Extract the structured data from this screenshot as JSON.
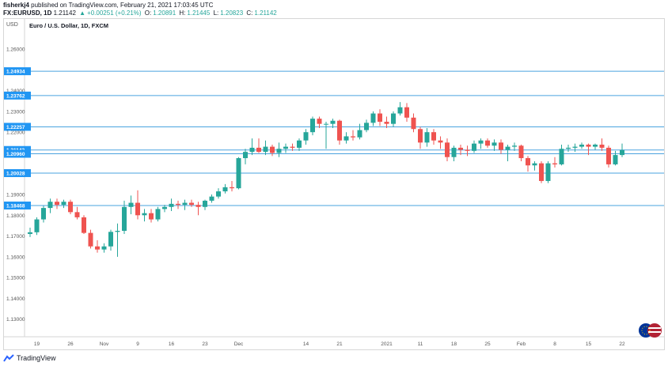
{
  "header": {
    "line1_user": "fisherkj4",
    "line1_rest": " published on TradingView.com, February 21, 2021 17:03:45 UTC",
    "symbol": "FX:EURUSD, 1D",
    "last": "1.21142",
    "change_arrow": "▲",
    "change": "+0.00251 (+0.21%)",
    "o_label": "O:",
    "o_value": "1.20891",
    "h_label": "H:",
    "h_value": "1.21445",
    "l_label": "L:",
    "l_value": "1.20823",
    "c_label": "C:",
    "c_value": "1.21142"
  },
  "footer": {
    "brand": "TradingView",
    "logo_icon": "tradingview-logo-icon"
  },
  "colors": {
    "up": "#26a69a",
    "down": "#ef5350",
    "hline": "#4aa3df",
    "label_bg": "#2196f3",
    "axis_text": "#555555",
    "grid": "#d6d6d6"
  },
  "chart_data": {
    "type": "candlestick",
    "title": "Euro / U.S. Dollar, 1D, FXCM",
    "currency_label": "USD",
    "ylim": [
      1.1215,
      1.2745
    ],
    "y_ticks": [
      1.13,
      1.14,
      1.15,
      1.16,
      1.17,
      1.18,
      1.19,
      1.2,
      1.21,
      1.22,
      1.23,
      1.24,
      1.25,
      1.26
    ],
    "y_tick_labels": [
      "1.13000",
      "1.14000",
      "1.15000",
      "1.16000",
      "1.17000",
      "1.18000",
      "1.19000",
      "1.20000",
      "1.21000",
      "1.22000",
      "1.23000",
      "1.24000",
      "1.25000",
      "1.26000"
    ],
    "x_ticks": [
      {
        "label": "19",
        "bar": 1
      },
      {
        "label": "26",
        "bar": 6
      },
      {
        "label": "Nov",
        "bar": 11
      },
      {
        "label": "9",
        "bar": 16
      },
      {
        "label": "16",
        "bar": 21
      },
      {
        "label": "23",
        "bar": 26
      },
      {
        "label": "Dec",
        "bar": 31
      },
      {
        "label": "14",
        "bar": 41
      },
      {
        "label": "21",
        "bar": 46
      },
      {
        "label": "2021",
        "bar": 53
      },
      {
        "label": "11",
        "bar": 58
      },
      {
        "label": "18",
        "bar": 63
      },
      {
        "label": "25",
        "bar": 68
      },
      {
        "label": "Feb",
        "bar": 73
      },
      {
        "label": "8",
        "bar": 78
      },
      {
        "label": "15",
        "bar": 83
      },
      {
        "label": "22",
        "bar": 88
      }
    ],
    "horizontal_levels": [
      {
        "value": 1.24934,
        "label": "1.24934"
      },
      {
        "value": 1.23762,
        "label": "1.23762"
      },
      {
        "value": 1.22257,
        "label": "1.22257"
      },
      {
        "value": 1.21142,
        "label": "1.21142"
      },
      {
        "value": 1.2096,
        "label": "1.20960"
      },
      {
        "value": 1.20028,
        "label": "1.20028"
      },
      {
        "value": 1.18468,
        "label": "1.18468"
      }
    ],
    "candles": [
      {
        "o": 1.171,
        "h": 1.174,
        "l": 1.1695,
        "c": 1.1718
      },
      {
        "o": 1.1718,
        "h": 1.179,
        "l": 1.1705,
        "c": 1.178
      },
      {
        "o": 1.178,
        "h": 1.1845,
        "l": 1.1765,
        "c": 1.1835
      },
      {
        "o": 1.1835,
        "h": 1.188,
        "l": 1.181,
        "c": 1.1865
      },
      {
        "o": 1.1865,
        "h": 1.188,
        "l": 1.183,
        "c": 1.185
      },
      {
        "o": 1.185,
        "h": 1.1875,
        "l": 1.1835,
        "c": 1.1865
      },
      {
        "o": 1.1865,
        "h": 1.1875,
        "l": 1.1805,
        "c": 1.1815
      },
      {
        "o": 1.1815,
        "h": 1.184,
        "l": 1.178,
        "c": 1.179
      },
      {
        "o": 1.179,
        "h": 1.18,
        "l": 1.171,
        "c": 1.1715
      },
      {
        "o": 1.1715,
        "h": 1.173,
        "l": 1.164,
        "c": 1.165
      },
      {
        "o": 1.165,
        "h": 1.168,
        "l": 1.162,
        "c": 1.1635
      },
      {
        "o": 1.1635,
        "h": 1.1665,
        "l": 1.162,
        "c": 1.165
      },
      {
        "o": 1.165,
        "h": 1.173,
        "l": 1.163,
        "c": 1.172
      },
      {
        "o": 1.172,
        "h": 1.176,
        "l": 1.16,
        "c": 1.1725
      },
      {
        "o": 1.1725,
        "h": 1.187,
        "l": 1.171,
        "c": 1.184
      },
      {
        "o": 1.184,
        "h": 1.1895,
        "l": 1.1805,
        "c": 1.186
      },
      {
        "o": 1.186,
        "h": 1.192,
        "l": 1.178,
        "c": 1.18
      },
      {
        "o": 1.18,
        "h": 1.183,
        "l": 1.177,
        "c": 1.181
      },
      {
        "o": 1.181,
        "h": 1.183,
        "l": 1.1765,
        "c": 1.178
      },
      {
        "o": 1.178,
        "h": 1.184,
        "l": 1.177,
        "c": 1.183
      },
      {
        "o": 1.183,
        "h": 1.185,
        "l": 1.1815,
        "c": 1.184
      },
      {
        "o": 1.184,
        "h": 1.188,
        "l": 1.182,
        "c": 1.1855
      },
      {
        "o": 1.1855,
        "h": 1.187,
        "l": 1.183,
        "c": 1.185
      },
      {
        "o": 1.185,
        "h": 1.1875,
        "l": 1.1825,
        "c": 1.186
      },
      {
        "o": 1.186,
        "h": 1.1875,
        "l": 1.184,
        "c": 1.185
      },
      {
        "o": 1.185,
        "h": 1.1865,
        "l": 1.18,
        "c": 1.184
      },
      {
        "o": 1.184,
        "h": 1.1875,
        "l": 1.1825,
        "c": 1.187
      },
      {
        "o": 1.187,
        "h": 1.19,
        "l": 1.186,
        "c": 1.189
      },
      {
        "o": 1.189,
        "h": 1.193,
        "l": 1.188,
        "c": 1.1915
      },
      {
        "o": 1.1915,
        "h": 1.195,
        "l": 1.1905,
        "c": 1.1935
      },
      {
        "o": 1.1935,
        "h": 1.1965,
        "l": 1.1915,
        "c": 1.193
      },
      {
        "o": 1.193,
        "h": 1.208,
        "l": 1.1925,
        "c": 1.2075
      },
      {
        "o": 1.2075,
        "h": 1.212,
        "l": 1.2045,
        "c": 1.2105
      },
      {
        "o": 1.2105,
        "h": 1.217,
        "l": 1.209,
        "c": 1.2125
      },
      {
        "o": 1.2125,
        "h": 1.217,
        "l": 1.21,
        "c": 1.2105
      },
      {
        "o": 1.2105,
        "h": 1.216,
        "l": 1.209,
        "c": 1.213
      },
      {
        "o": 1.213,
        "h": 1.214,
        "l": 1.2085,
        "c": 1.21
      },
      {
        "o": 1.21,
        "h": 1.215,
        "l": 1.208,
        "c": 1.212
      },
      {
        "o": 1.212,
        "h": 1.2145,
        "l": 1.21,
        "c": 1.213
      },
      {
        "o": 1.213,
        "h": 1.2145,
        "l": 1.211,
        "c": 1.2125
      },
      {
        "o": 1.2125,
        "h": 1.217,
        "l": 1.211,
        "c": 1.216
      },
      {
        "o": 1.216,
        "h": 1.2215,
        "l": 1.214,
        "c": 1.22
      },
      {
        "o": 1.22,
        "h": 1.2275,
        "l": 1.2185,
        "c": 1.2265
      },
      {
        "o": 1.2265,
        "h": 1.2275,
        "l": 1.222,
        "c": 1.224
      },
      {
        "o": 1.224,
        "h": 1.225,
        "l": 1.212,
        "c": 1.224
      },
      {
        "o": 1.224,
        "h": 1.2265,
        "l": 1.222,
        "c": 1.2255
      },
      {
        "o": 1.2255,
        "h": 1.226,
        "l": 1.214,
        "c": 1.216
      },
      {
        "o": 1.216,
        "h": 1.22,
        "l": 1.2145,
        "c": 1.218
      },
      {
        "o": 1.218,
        "h": 1.221,
        "l": 1.216,
        "c": 1.2175
      },
      {
        "o": 1.2175,
        "h": 1.224,
        "l": 1.2165,
        "c": 1.221
      },
      {
        "o": 1.221,
        "h": 1.226,
        "l": 1.22,
        "c": 1.2245
      },
      {
        "o": 1.2245,
        "h": 1.23,
        "l": 1.223,
        "c": 1.229
      },
      {
        "o": 1.229,
        "h": 1.231,
        "l": 1.223,
        "c": 1.225
      },
      {
        "o": 1.225,
        "h": 1.2275,
        "l": 1.222,
        "c": 1.224
      },
      {
        "o": 1.224,
        "h": 1.23,
        "l": 1.2225,
        "c": 1.229
      },
      {
        "o": 1.229,
        "h": 1.2345,
        "l": 1.228,
        "c": 1.232
      },
      {
        "o": 1.232,
        "h": 1.234,
        "l": 1.225,
        "c": 1.227
      },
      {
        "o": 1.227,
        "h": 1.229,
        "l": 1.22,
        "c": 1.2215
      },
      {
        "o": 1.2215,
        "h": 1.2225,
        "l": 1.212,
        "c": 1.215
      },
      {
        "o": 1.215,
        "h": 1.222,
        "l": 1.213,
        "c": 1.22
      },
      {
        "o": 1.22,
        "h": 1.2215,
        "l": 1.214,
        "c": 1.216
      },
      {
        "o": 1.216,
        "h": 1.218,
        "l": 1.212,
        "c": 1.215
      },
      {
        "o": 1.215,
        "h": 1.217,
        "l": 1.206,
        "c": 1.208
      },
      {
        "o": 1.208,
        "h": 1.2135,
        "l": 1.206,
        "c": 1.2125
      },
      {
        "o": 1.2125,
        "h": 1.214,
        "l": 1.209,
        "c": 1.2115
      },
      {
        "o": 1.2115,
        "h": 1.2135,
        "l": 1.2085,
        "c": 1.211
      },
      {
        "o": 1.211,
        "h": 1.216,
        "l": 1.21,
        "c": 1.2145
      },
      {
        "o": 1.2145,
        "h": 1.217,
        "l": 1.212,
        "c": 1.216
      },
      {
        "o": 1.216,
        "h": 1.217,
        "l": 1.2125,
        "c": 1.2135
      },
      {
        "o": 1.2135,
        "h": 1.2165,
        "l": 1.211,
        "c": 1.215
      },
      {
        "o": 1.215,
        "h": 1.2165,
        "l": 1.2095,
        "c": 1.2115
      },
      {
        "o": 1.2115,
        "h": 1.214,
        "l": 1.206,
        "c": 1.213
      },
      {
        "o": 1.213,
        "h": 1.215,
        "l": 1.211,
        "c": 1.2135
      },
      {
        "o": 1.2135,
        "h": 1.214,
        "l": 1.206,
        "c": 1.2075
      },
      {
        "o": 1.2075,
        "h": 1.2085,
        "l": 1.201,
        "c": 1.204
      },
      {
        "o": 1.204,
        "h": 1.206,
        "l": 1.2015,
        "c": 1.205
      },
      {
        "o": 1.205,
        "h": 1.206,
        "l": 1.1955,
        "c": 1.1965
      },
      {
        "o": 1.1965,
        "h": 1.206,
        "l": 1.1955,
        "c": 1.205
      },
      {
        "o": 1.205,
        "h": 1.208,
        "l": 1.203,
        "c": 1.2045
      },
      {
        "o": 1.2045,
        "h": 1.214,
        "l": 1.204,
        "c": 1.212
      },
      {
        "o": 1.212,
        "h": 1.214,
        "l": 1.2105,
        "c": 1.2125
      },
      {
        "o": 1.2125,
        "h": 1.2145,
        "l": 1.2105,
        "c": 1.213
      },
      {
        "o": 1.213,
        "h": 1.215,
        "l": 1.212,
        "c": 1.214
      },
      {
        "o": 1.214,
        "h": 1.2145,
        "l": 1.209,
        "c": 1.213
      },
      {
        "o": 1.213,
        "h": 1.2145,
        "l": 1.2115,
        "c": 1.214
      },
      {
        "o": 1.214,
        "h": 1.217,
        "l": 1.211,
        "c": 1.2125
      },
      {
        "o": 1.2125,
        "h": 1.2135,
        "l": 1.203,
        "c": 1.2045
      },
      {
        "o": 1.2045,
        "h": 1.211,
        "l": 1.204,
        "c": 1.209
      },
      {
        "o": 1.209,
        "h": 1.2145,
        "l": 1.208,
        "c": 1.2114
      }
    ]
  }
}
